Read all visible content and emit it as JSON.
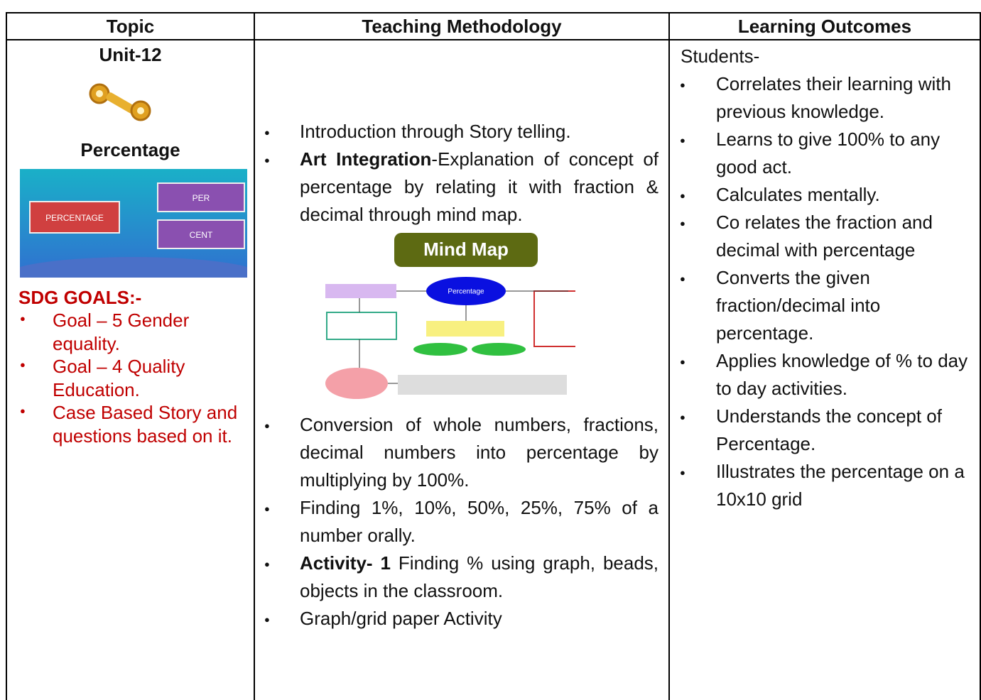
{
  "table": {
    "headers": [
      "Topic",
      "Teaching Methodology",
      "Learning Outcomes"
    ],
    "topic": {
      "unit": "Unit-12",
      "title": "Percentage",
      "image_texts": [
        "PERCENTAGE",
        "PER",
        "CENT"
      ],
      "sdg_heading": "SDG GOALS:-",
      "sdg_items": [
        "Goal – 5 Gender equality.",
        "Goal – 4 Quality Education.",
        "Case Based Story and questions based on it."
      ]
    },
    "methodology": {
      "items_before": [
        {
          "text": "Introduction through Story telling."
        },
        {
          "bold": "Art Integration",
          "text": "-Explanation of concept of percentage by relating it with fraction & decimal through mind map."
        }
      ],
      "mind_map": {
        "title": "Mind Map",
        "center": "Percentage"
      },
      "items_after": [
        {
          "text": "Conversion of whole numbers, fractions, decimal numbers into percentage by multiplying by 100%."
        },
        {
          "text": "Finding 1%, 10%, 50%, 25%, 75% of a number orally."
        },
        {
          "bold": "Activity- 1",
          "text": " Finding % using graph, beads, objects in the classroom."
        },
        {
          "text": "Graph/grid paper Activity"
        }
      ]
    },
    "outcomes": {
      "intro": "Students-",
      "items": [
        "Correlates their learning with previous knowledge.",
        "Learns to give 100% to any good act.",
        "Calculates mentally.",
        "Co relates the fraction and decimal with percentage",
        "Converts the given fraction/decimal into percentage.",
        "Applies knowledge of % to day to day activities.",
        "Understands the concept of Percentage.",
        "Illustrates the percentage on a 10x10 grid"
      ]
    }
  }
}
